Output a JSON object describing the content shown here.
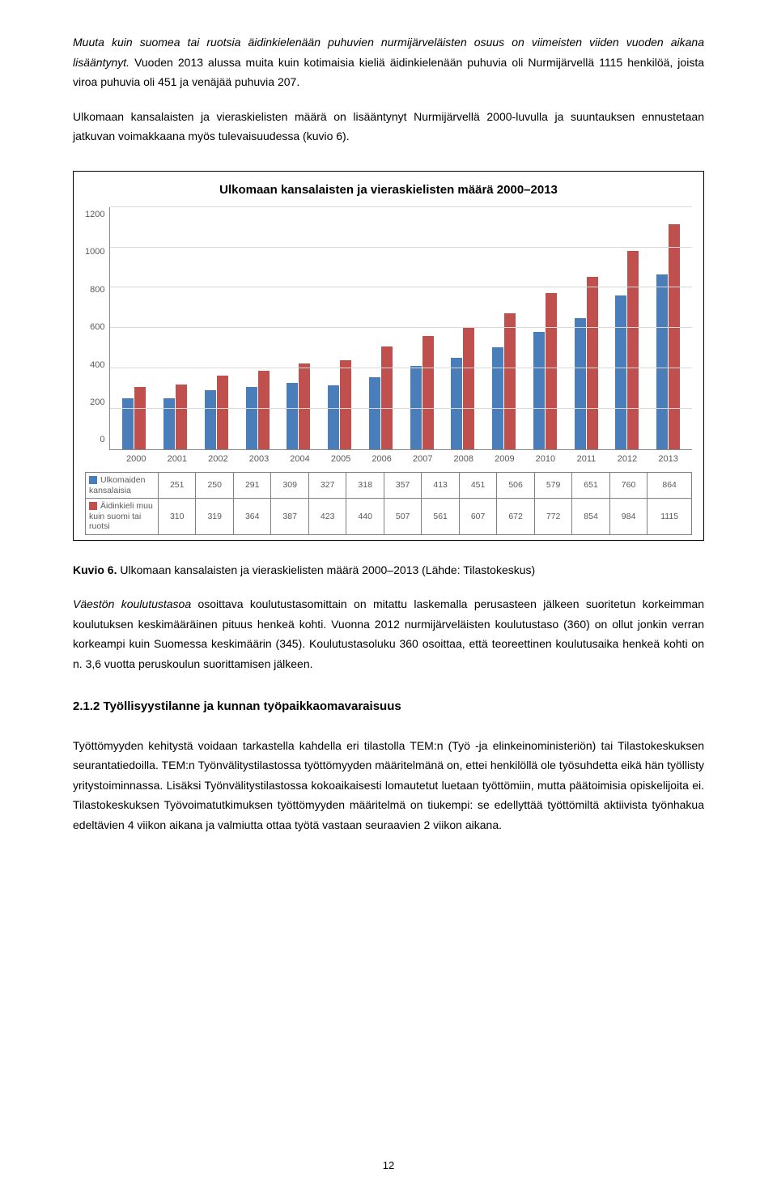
{
  "para1_italic": "Muuta kuin suomea tai ruotsia äidinkielenään puhuvien nurmijärveläisten osuus on viimeisten viiden vuoden aikana lisääntynyt.",
  "para1_rest": " Vuoden 2013 alussa muita kuin kotimaisia kieliä äidinkielenään puhuvia oli Nurmijärvellä 1115 henkilöä, joista viroa puhuvia oli 451 ja venäjää puhuvia 207.",
  "para2": "Ulkomaan kansalaisten ja vieraskielisten määrä on lisääntynyt Nurmijärvellä 2000-luvulla ja suuntauksen ennustetaan jatkuvan voimakkaana myös tulevaisuudessa (kuvio 6).",
  "chart": {
    "title": "Ulkomaan kansalaisten ja vieraskielisten määrä 2000–2013",
    "ymax": 1200,
    "ytick_step": 200,
    "yticks": [
      "1200",
      "1000",
      "800",
      "600",
      "400",
      "200",
      "0"
    ],
    "years": [
      "2000",
      "2001",
      "2002",
      "2003",
      "2004",
      "2005",
      "2006",
      "2007",
      "2008",
      "2009",
      "2010",
      "2011",
      "2012",
      "2013"
    ],
    "series1_label": "Ulkomaiden kansalaisia",
    "series1_color": "#4a7ebb",
    "series1": [
      251,
      250,
      291,
      309,
      327,
      318,
      357,
      413,
      451,
      506,
      579,
      651,
      760,
      864
    ],
    "series2_label": "Äidinkieli muu kuin suomi tai ruotsi",
    "series2_color": "#c0504d",
    "series2": [
      310,
      319,
      364,
      387,
      423,
      440,
      507,
      561,
      607,
      672,
      772,
      854,
      984,
      1115
    ],
    "grid_color": "#d9d9d9",
    "bg": "#ffffff"
  },
  "caption_bold": "Kuvio 6.",
  "caption_rest": " Ulkomaan kansalaisten ja vieraskielisten määrä 2000–2013 (Lähde: Tilastokeskus)",
  "para3_italic": "Väestön koulutustasoa",
  "para3_rest": " osoittava koulutustasomittain on mitattu laskemalla perusasteen jälkeen suoritetun korkeimman koulutuksen keskimääräinen pituus henkeä kohti. Vuonna 2012 nurmijärveläisten koulutustaso (360) on ollut jonkin verran korkeampi kuin Suomessa keskimäärin (345). Koulutustasoluku 360 osoittaa, että teoreettinen koulutusaika henkeä kohti on n. 3,6 vuotta peruskoulun suorittamisen jälkeen.",
  "heading": "2.1.2 Työllisyystilanne ja kunnan työpaikkaomavaraisuus",
  "para4": "Työttömyyden kehitystä voidaan tarkastella kahdella eri tilastolla TEM:n (Työ -ja elinkeinoministeriön) tai Tilastokeskuksen seurantatiedoilla. TEM:n Työnvälitystilastossa työttömyyden määritelmänä on, ettei henkilöllä ole työsuhdetta eikä hän työllisty yritystoiminnassa. Lisäksi Työnvälitystilastossa kokoaikaisesti lomautetut luetaan työttömiin, mutta päätoimisia opiskelijoita ei. Tilastokeskuksen Työvoimatutkimuksen työttömyyden määritelmä on tiukempi: se edellyttää työttömiltä aktiivista työnhakua edeltävien 4 viikon aikana ja valmiutta ottaa työtä vastaan seuraavien 2 viikon aikana.",
  "page_number": "12"
}
